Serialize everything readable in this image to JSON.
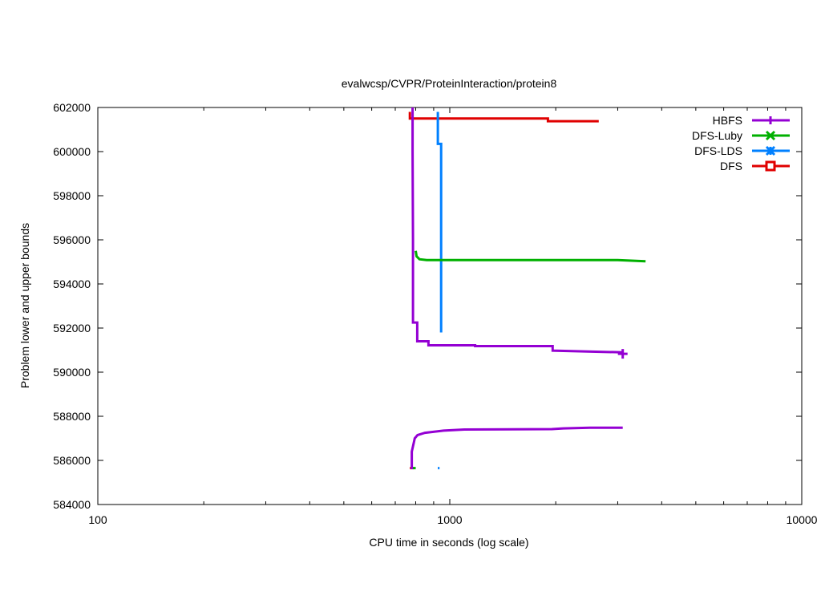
{
  "chart_data": {
    "type": "line",
    "title": "evalwcsp/CVPR/ProteinInteraction/protein8",
    "xlabel": "CPU time in seconds (log scale)",
    "ylabel": "Problem lower and upper bounds",
    "xscale": "log",
    "xlim": [
      100,
      10000
    ],
    "ylim": [
      584000,
      602000
    ],
    "xticks": [
      100,
      1000,
      10000
    ],
    "xtick_labels": [
      "100",
      "1000",
      "10000"
    ],
    "yticks": [
      584000,
      586000,
      588000,
      590000,
      592000,
      594000,
      596000,
      598000,
      600000,
      602000
    ],
    "ytick_labels": [
      "584000",
      "586000",
      "588000",
      "590000",
      "592000",
      "594000",
      "596000",
      "598000",
      "600000",
      "602000"
    ],
    "grid": false,
    "legend_position": "top-right",
    "series": [
      {
        "name": "HBFS",
        "color": "#9400d3",
        "marker": "plus",
        "upper": [
          [
            784,
            602000
          ],
          [
            784,
            600000
          ],
          [
            786,
            596000
          ],
          [
            786,
            592250
          ],
          [
            808,
            592250
          ],
          [
            808,
            591400
          ],
          [
            870,
            591400
          ],
          [
            870,
            591220
          ],
          [
            1180,
            591220
          ],
          [
            1180,
            591180
          ],
          [
            1960,
            591180
          ],
          [
            1960,
            590980
          ],
          [
            3100,
            590900
          ]
        ],
        "lower": [
          [
            780,
            585600
          ],
          [
            780,
            586400
          ],
          [
            790,
            586800
          ],
          [
            795,
            587000
          ],
          [
            810,
            587150
          ],
          [
            850,
            587250
          ],
          [
            960,
            587350
          ],
          [
            1100,
            587400
          ],
          [
            1950,
            587420
          ],
          [
            2100,
            587450
          ],
          [
            2500,
            587480
          ],
          [
            3100,
            587480
          ]
        ],
        "final_marker": [
          3100,
          590830
        ]
      },
      {
        "name": "DFS-Luby",
        "color": "#00b000",
        "marker": "x",
        "upper": [
          [
            800,
            595500
          ],
          [
            805,
            595250
          ],
          [
            820,
            595120
          ],
          [
            860,
            595080
          ],
          [
            3000,
            595080
          ],
          [
            3600,
            595030
          ]
        ],
        "lower": [
          [
            785,
            585650
          ],
          [
            800,
            585650
          ]
        ]
      },
      {
        "name": "DFS-LDS",
        "color": "#0080ff",
        "marker": "asterisk",
        "upper": [
          [
            925,
            601800
          ],
          [
            925,
            600350
          ],
          [
            945,
            600350
          ],
          [
            945,
            591800
          ]
        ],
        "lower": [
          [
            925,
            585650
          ],
          [
            935,
            585650
          ]
        ]
      },
      {
        "name": "DFS",
        "color": "#e00000",
        "marker": "square",
        "upper": [
          [
            770,
            601800
          ],
          [
            770,
            601500
          ],
          [
            1900,
            601500
          ],
          [
            1900,
            601380
          ],
          [
            2650,
            601380
          ]
        ],
        "lower": [
          [
            770,
            585650
          ],
          [
            790,
            585650
          ]
        ]
      }
    ]
  }
}
